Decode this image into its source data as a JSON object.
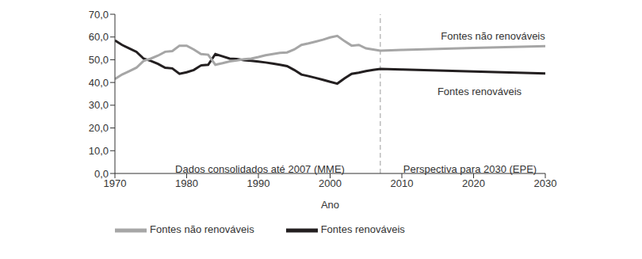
{
  "chart_data": {
    "type": "line",
    "x_label": "Ano",
    "x": [
      1970,
      1971,
      1972,
      1973,
      1974,
      1975,
      1976,
      1977,
      1978,
      1979,
      1980,
      1981,
      1982,
      1983,
      1984,
      1985,
      1986,
      1987,
      1988,
      1989,
      1990,
      1991,
      1992,
      1993,
      1994,
      1995,
      1996,
      1997,
      1998,
      1999,
      2000,
      2001,
      2002,
      2003,
      2004,
      2005,
      2006,
      2007,
      2010,
      2020,
      2030
    ],
    "xlim": [
      1970,
      2030
    ],
    "xticks": [
      1970,
      1980,
      1990,
      2000,
      2010,
      2020,
      2030
    ],
    "ylim": [
      0,
      70
    ],
    "yticks": [
      {
        "value": 0,
        "label": "0,0"
      },
      {
        "value": 10,
        "label": "10,0"
      },
      {
        "value": 20,
        "label": "20,0"
      },
      {
        "value": 30,
        "label": "30,0"
      },
      {
        "value": 40,
        "label": "40,0"
      },
      {
        "value": 50,
        "label": "50,0"
      },
      {
        "value": 60,
        "label": "60,0"
      },
      {
        "value": 70,
        "label": "70,0"
      }
    ],
    "series": [
      {
        "name": "Fontes renováveis",
        "color": "#231f20",
        "values": [
          58.5,
          56.5,
          55,
          53.5,
          50.5,
          49.5,
          48.2,
          46.5,
          46.2,
          43.8,
          44.5,
          45.5,
          47.5,
          47.8,
          52.5,
          51.5,
          50.5,
          50.3,
          49.8,
          49.5,
          49.2,
          48.8,
          48.3,
          47.8,
          47.2,
          45.5,
          43.5,
          42.8,
          42,
          41.2,
          40.3,
          39.5,
          41.8,
          43.8,
          44.3,
          45,
          45.5,
          46,
          45.7,
          44.8,
          44
        ]
      },
      {
        "name": "Fontes não renováveis",
        "color": "#a6a6a6",
        "values": [
          41.5,
          43.5,
          45,
          46.5,
          49.5,
          50.5,
          51.8,
          53.5,
          53.8,
          56.2,
          56.2,
          54.5,
          52.5,
          52.2,
          47.8,
          48.5,
          49.3,
          49.7,
          50.2,
          50.5,
          51.2,
          52,
          52.5,
          53,
          53.2,
          54.5,
          56.5,
          57.2,
          58,
          58.8,
          59.8,
          60.5,
          58.2,
          56.2,
          56.5,
          55,
          54.5,
          54,
          54.3,
          55.2,
          56
        ]
      }
    ],
    "annotations": [
      "Fontes não renováveis",
      "Fontes renováveis",
      "Dados consolidados até 2007 (MME)",
      "Perspectiva para 2030 (EPE)"
    ],
    "divider_x": 2007,
    "legend": "bottom",
    "grid": false
  }
}
